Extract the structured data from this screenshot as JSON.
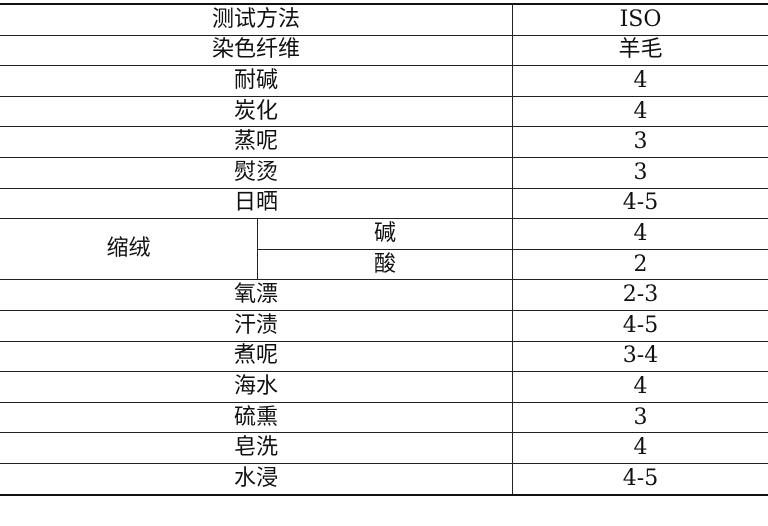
{
  "header": {
    "method": "测试方法",
    "standard": "ISO"
  },
  "fiber": {
    "label": "染色纤维",
    "value": "羊毛"
  },
  "rows_top": [
    {
      "label": "耐碱",
      "value": "4"
    },
    {
      "label": "炭化",
      "value": "4"
    },
    {
      "label": "蒸呢",
      "value": "3"
    },
    {
      "label": "熨烫",
      "value": "3"
    },
    {
      "label": "日晒",
      "value": "4-5"
    }
  ],
  "felting": {
    "label": "缩绒",
    "sub": [
      {
        "label": "碱",
        "value": "4"
      },
      {
        "label": "酸",
        "value": "2"
      }
    ]
  },
  "rows_bottom": [
    {
      "label": "氧漂",
      "value": "2-3"
    },
    {
      "label": "汗渍",
      "value": "4-5"
    },
    {
      "label": "煮呢",
      "value": "3-4"
    },
    {
      "label": "海水",
      "value": "4"
    },
    {
      "label": "硫熏",
      "value": "3"
    },
    {
      "label": "皂洗",
      "value": "4"
    },
    {
      "label": "水浸",
      "value": "4-5"
    }
  ]
}
